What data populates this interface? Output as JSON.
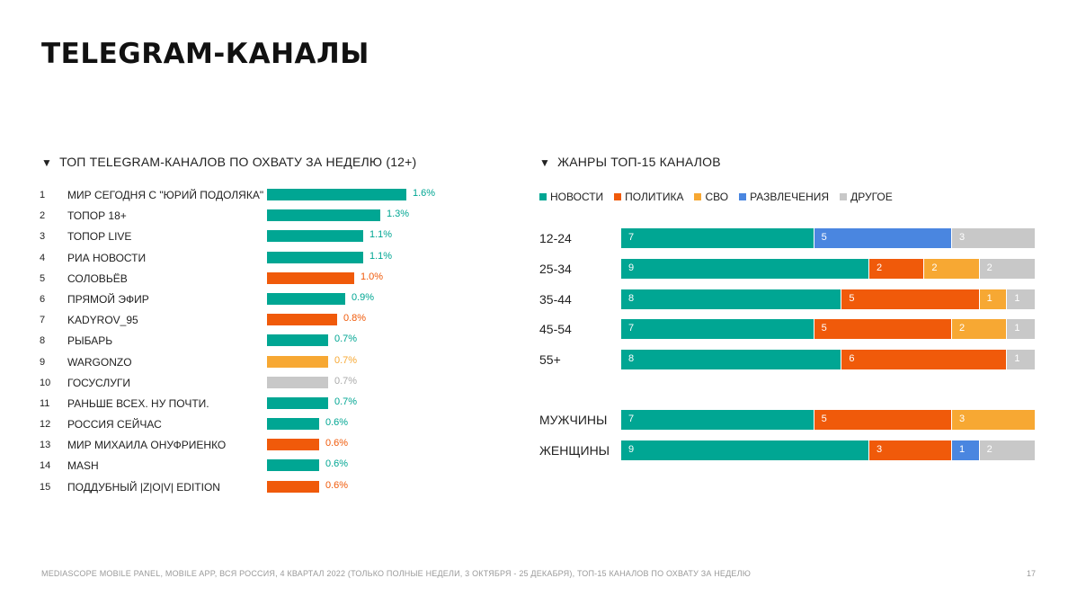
{
  "page": {
    "title": "TELEGRAM-КАНАЛЫ",
    "footer": "MEDIASCOPE MOBILE PANEL, MOBILE APP, ВСЯ РОССИЯ, 4 КВАРТАЛ 2022 (ТОЛЬКО ПОЛНЫЕ НЕДЕЛИ, 3 ОКТЯБРЯ - 25 ДЕКАБРЯ), ТОП-15 КАНАЛОВ ПО ОХВАТУ ЗА НЕДЕЛЮ",
    "page_number": "17"
  },
  "chart_data": [
    {
      "type": "bar",
      "orientation": "horizontal",
      "title": "ТОП TELEGRAM-КАНАЛОВ ПО ОХВАТУ ЗА НЕДЕЛЮ (12+)",
      "categories": [
        "МИР СЕГОДНЯ С \"ЮРИЙ ПОДОЛЯКА\"",
        "ТОПОР 18+",
        "ТОПОР LIVE",
        "РИА НОВОСТИ",
        "СОЛОВЬЁВ",
        "ПРЯМОЙ ЭФИР",
        "KADYROV_95",
        "РЫБАРЬ",
        "WARGONZO",
        "ГОСУСЛУГИ",
        "РАНЬШЕ ВСЕХ. НУ ПОЧТИ.",
        "РОССИЯ СЕЙЧАС",
        "МИР МИХАИЛА ОНУФРИЕНКО",
        "MASH",
        "ПОДДУБНЫЙ |Z|O|V| EDITION"
      ],
      "ranks": [
        "1",
        "2",
        "3",
        "4",
        "5",
        "6",
        "7",
        "8",
        "9",
        "10",
        "11",
        "12",
        "13",
        "14",
        "15"
      ],
      "values": [
        1.6,
        1.3,
        1.1,
        1.1,
        1.0,
        0.9,
        0.8,
        0.7,
        0.7,
        0.7,
        0.7,
        0.6,
        0.6,
        0.6,
        0.6
      ],
      "value_labels": [
        "1.6%",
        "1.3%",
        "1.1%",
        "1.1%",
        "1.0%",
        "0.9%",
        "0.8%",
        "0.7%",
        "0.7%",
        "0.7%",
        "0.7%",
        "0.6%",
        "0.6%",
        "0.6%",
        "0.6%"
      ],
      "genres": [
        "news",
        "news",
        "news",
        "news",
        "politics",
        "news",
        "politics",
        "news",
        "svo",
        "other",
        "news",
        "news",
        "politics",
        "news",
        "politics"
      ]
    },
    {
      "type": "bar",
      "orientation": "horizontal",
      "stacked": true,
      "title": "ЖАНРЫ ТОП-15 КАНАЛОВ",
      "legend": [
        "НОВОСТИ",
        "ПОЛИТИКА",
        "СВО",
        "РАЗВЛЕЧЕНИЯ",
        "ДРУГОЕ"
      ],
      "series_keys": [
        "news",
        "politics",
        "svo",
        "entertainment",
        "other"
      ],
      "rows": [
        {
          "label": "12-24",
          "values": {
            "news": 7,
            "politics": 0,
            "svo": 0,
            "entertainment": 5,
            "other": 3
          }
        },
        {
          "label": "25-34",
          "values": {
            "news": 9,
            "politics": 2,
            "svo": 2,
            "entertainment": 0,
            "other": 2
          }
        },
        {
          "label": "35-44",
          "values": {
            "news": 8,
            "politics": 5,
            "svo": 1,
            "entertainment": 0,
            "other": 1
          }
        },
        {
          "label": "45-54",
          "values": {
            "news": 7,
            "politics": 5,
            "svo": 2,
            "entertainment": 0,
            "other": 1
          }
        },
        {
          "label": "55+",
          "values": {
            "news": 8,
            "politics": 6,
            "svo": 0,
            "entertainment": 0,
            "other": 1
          }
        },
        {
          "label": "МУЖЧИНЫ",
          "values": {
            "news": 7,
            "politics": 5,
            "svo": 3,
            "entertainment": 0,
            "other": 0
          }
        },
        {
          "label": "ЖЕНЩИНЫ",
          "values": {
            "news": 9,
            "politics": 3,
            "svo": 0,
            "entertainment": 1,
            "other": 2
          }
        }
      ],
      "total": 15
    }
  ],
  "colors": {
    "news": "#00a693",
    "politics": "#f05a0a",
    "svo": "#f7a833",
    "entertainment": "#4a86e0",
    "other": "#c8c8c8"
  }
}
